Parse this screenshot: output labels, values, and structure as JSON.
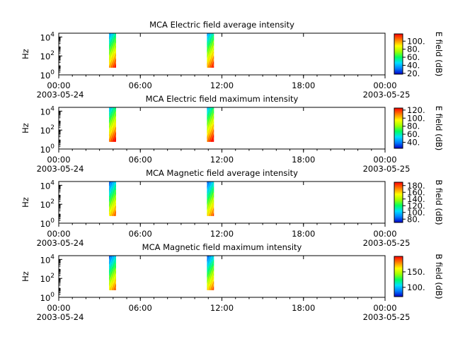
{
  "chart_data": [
    {
      "type": "heatmap",
      "title": "MCA  Electric field average intensity",
      "ylabel": "Hz",
      "y_scale": "log",
      "yticks": [
        {
          "base": "10",
          "exp": "0"
        },
        {
          "base": "10",
          "exp": "2"
        },
        {
          "base": "10",
          "exp": "4"
        }
      ],
      "xticks": [
        [
          "00:00",
          "2003-05-24"
        ],
        [
          "06:00",
          ""
        ],
        [
          "12:00",
          ""
        ],
        [
          "18:00",
          ""
        ],
        [
          "00:00",
          "2003-05-25"
        ]
      ],
      "x_range_hours": [
        0,
        24
      ],
      "colorbar": {
        "label": "E field (dB)",
        "ticks": [
          "20.",
          "40.",
          "60.",
          "80.",
          "100."
        ],
        "range": [
          18,
          118
        ]
      },
      "bursts": [
        {
          "t_start_hours": 3.7,
          "t_end_hours": 4.2,
          "f_min_hz": 6,
          "f_max_hz": 25000,
          "bias": 0
        },
        {
          "t_start_hours": 10.9,
          "t_end_hours": 11.4,
          "f_min_hz": 6,
          "f_max_hz": 25000,
          "bias": 0
        }
      ]
    },
    {
      "type": "heatmap",
      "title": "MCA  Electric field maximum intensity",
      "ylabel": "Hz",
      "y_scale": "log",
      "yticks": [
        {
          "base": "10",
          "exp": "0"
        },
        {
          "base": "10",
          "exp": "2"
        },
        {
          "base": "10",
          "exp": "4"
        }
      ],
      "xticks": [
        [
          "00:00",
          "2003-05-24"
        ],
        [
          "06:00",
          ""
        ],
        [
          "12:00",
          ""
        ],
        [
          "18:00",
          ""
        ],
        [
          "00:00",
          "2003-05-25"
        ]
      ],
      "x_range_hours": [
        0,
        24
      ],
      "colorbar": {
        "label": "E field (dB)",
        "ticks": [
          "40.",
          "60.",
          "80.",
          "100.",
          "120."
        ],
        "range": [
          25,
          125
        ]
      },
      "bursts": [
        {
          "t_start_hours": 3.7,
          "t_end_hours": 4.2,
          "f_min_hz": 6,
          "f_max_hz": 25000,
          "bias": 0.05
        },
        {
          "t_start_hours": 10.9,
          "t_end_hours": 11.4,
          "f_min_hz": 6,
          "f_max_hz": 25000,
          "bias": 0.05
        }
      ]
    },
    {
      "type": "heatmap",
      "title": "MCA  Magnetic field average intensity",
      "ylabel": "Hz",
      "y_scale": "log",
      "yticks": [
        {
          "base": "10",
          "exp": "0"
        },
        {
          "base": "10",
          "exp": "2"
        },
        {
          "base": "10",
          "exp": "4"
        }
      ],
      "xticks": [
        [
          "00:00",
          "2003-05-24"
        ],
        [
          "06:00",
          ""
        ],
        [
          "12:00",
          ""
        ],
        [
          "18:00",
          ""
        ],
        [
          "00:00",
          "2003-05-25"
        ]
      ],
      "x_range_hours": [
        0,
        24
      ],
      "colorbar": {
        "label": "B field (dB)",
        "ticks": [
          "80.",
          "100.",
          "120.",
          "140.",
          "160.",
          "180."
        ],
        "range": [
          70,
          190
        ]
      },
      "bursts": [
        {
          "t_start_hours": 3.7,
          "t_end_hours": 4.2,
          "f_min_hz": 6,
          "f_max_hz": 25000,
          "bias": -0.08
        },
        {
          "t_start_hours": 10.9,
          "t_end_hours": 11.4,
          "f_min_hz": 6,
          "f_max_hz": 25000,
          "bias": -0.08
        }
      ]
    },
    {
      "type": "heatmap",
      "title": "MCA  Magnetic field maximum intensity",
      "ylabel": "Hz",
      "y_scale": "log",
      "yticks": [
        {
          "base": "10",
          "exp": "0"
        },
        {
          "base": "10",
          "exp": "2"
        },
        {
          "base": "10",
          "exp": "4"
        }
      ],
      "xticks": [
        [
          "00:00",
          "2003-05-24"
        ],
        [
          "06:00",
          ""
        ],
        [
          "12:00",
          ""
        ],
        [
          "18:00",
          ""
        ],
        [
          "00:00",
          "2003-05-25"
        ]
      ],
      "x_range_hours": [
        0,
        24
      ],
      "colorbar": {
        "label": "B field (dB)",
        "ticks": [
          "100.",
          "150."
        ],
        "range": [
          70,
          200
        ]
      },
      "bursts": [
        {
          "t_start_hours": 3.7,
          "t_end_hours": 4.2,
          "f_min_hz": 6,
          "f_max_hz": 25000,
          "bias": -0.08
        },
        {
          "t_start_hours": 10.9,
          "t_end_hours": 11.4,
          "f_min_hz": 6,
          "f_max_hz": 25000,
          "bias": -0.08
        }
      ]
    }
  ]
}
